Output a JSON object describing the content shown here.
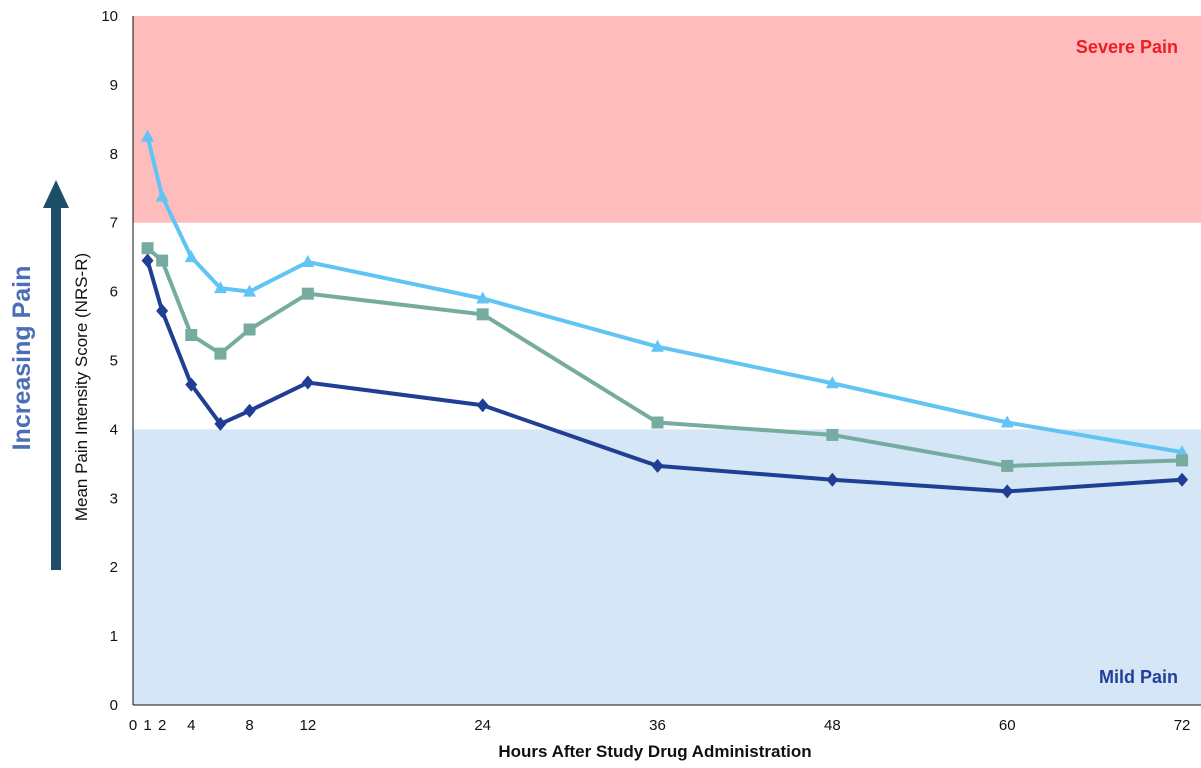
{
  "chart_data": {
    "type": "line",
    "xlabel": "Hours After Study Drug Administration",
    "ylabel": "Mean Pain Intensity Score (NRS-R)",
    "side_label": "Increasing Pain",
    "ylim": [
      0,
      10
    ],
    "y_ticks": [
      "0",
      "1",
      "2",
      "3",
      "4",
      "5",
      "6",
      "7",
      "8",
      "9",
      "10"
    ],
    "x_tick_values": [
      0,
      1,
      2,
      4,
      8,
      12,
      24,
      36,
      48,
      60,
      72
    ],
    "x_tick_labels": [
      "0",
      "1",
      "2",
      "4",
      "8",
      "12",
      "24",
      "36",
      "48",
      "60",
      "72"
    ],
    "grid": false,
    "bands": [
      {
        "label": "Severe Pain",
        "from": 7,
        "to": 10,
        "color": "#ffbcbc",
        "label_color": "#ee1c25"
      },
      {
        "label": "Mild Pain",
        "from": 0,
        "to": 4,
        "color": "#d5e6f7",
        "label_color": "#22409a"
      }
    ],
    "x": [
      1,
      2,
      4,
      6,
      8,
      12,
      24,
      36,
      48,
      60,
      72
    ],
    "series": [
      {
        "marker": "triangle",
        "color": "#61c4f4",
        "values": [
          8.25,
          7.38,
          6.5,
          6.05,
          6.0,
          6.43,
          5.9,
          5.2,
          4.67,
          4.1,
          3.67
        ]
      },
      {
        "marker": "square",
        "color": "#76aca0",
        "values": [
          6.63,
          6.45,
          5.37,
          5.1,
          5.45,
          5.97,
          5.67,
          4.1,
          3.92,
          3.47,
          3.55
        ]
      },
      {
        "marker": "diamond",
        "color": "#203f94",
        "values": [
          6.45,
          5.72,
          4.65,
          4.08,
          4.27,
          4.68,
          4.35,
          3.47,
          3.27,
          3.1,
          3.27
        ]
      }
    ]
  },
  "colors": {
    "arrow": "#1d4e68",
    "side_label": "#4a6fb5"
  }
}
